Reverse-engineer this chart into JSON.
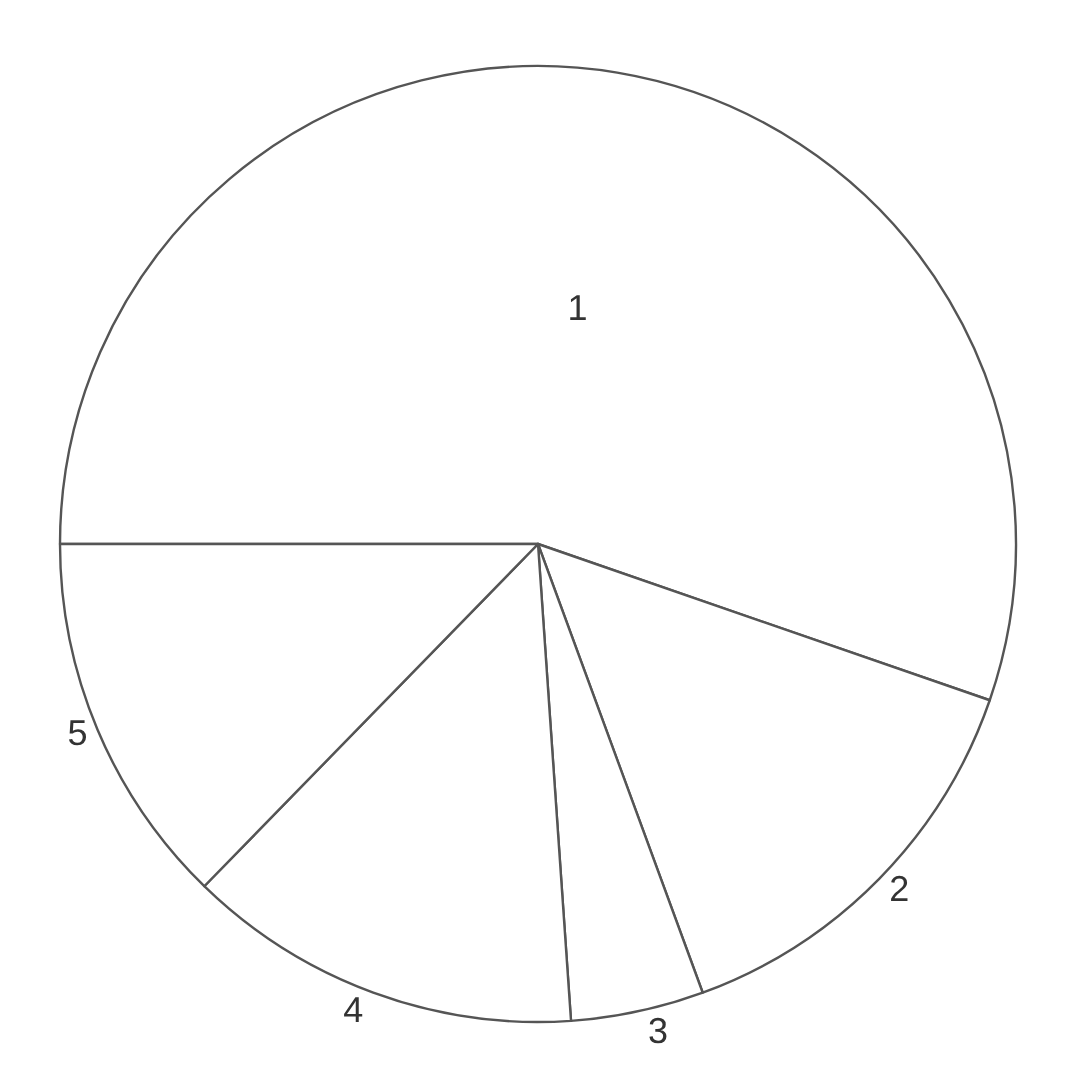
{
  "chart_data": {
    "type": "pie",
    "categories": [
      "1",
      "2",
      "3",
      "4",
      "5"
    ],
    "values": [
      55.3,
      14.1,
      4.5,
      13.4,
      12.7
    ],
    "colors": [
      "#ffffff",
      "#ffffff",
      "#ffffff",
      "#ffffff",
      "#ffffff"
    ],
    "legend": false
  }
}
